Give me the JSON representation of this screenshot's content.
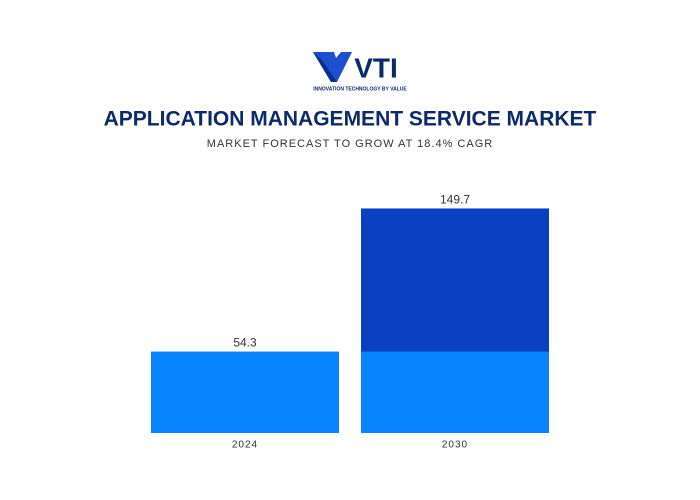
{
  "logo": {
    "text": "VTI",
    "tagline": "INNOVATION TECHNOLOGY BY VALUE"
  },
  "chart_data": {
    "type": "bar",
    "stacked": false,
    "title": "APPLICATION MANAGEMENT SERVICE MARKET",
    "subtitle": "MARKET FORECAST TO GROW AT 18.4% CAGR",
    "categories": [
      "2024",
      "2030"
    ],
    "series": [
      {
        "color": "#0b40c0",
        "values": [
          null,
          149.7
        ]
      },
      {
        "color": "#0984ff",
        "values": [
          54.3,
          54.3
        ]
      }
    ],
    "ylim": [
      0,
      160
    ],
    "grid": false
  }
}
